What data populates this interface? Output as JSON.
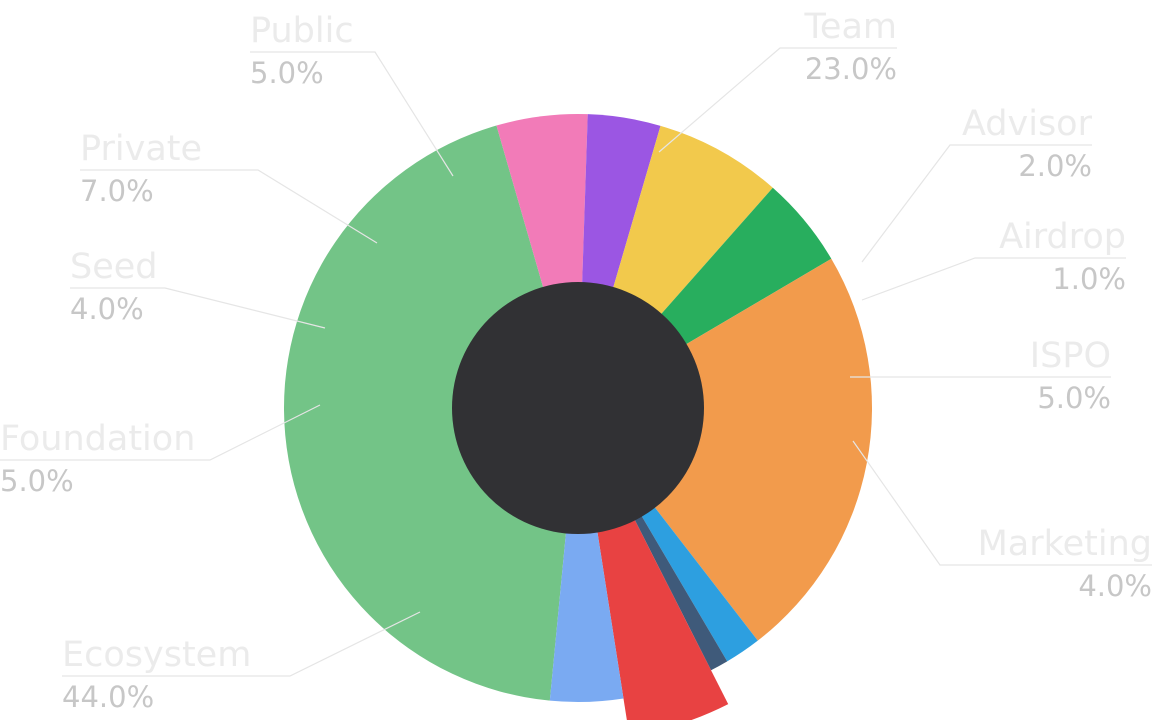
{
  "chart_data": {
    "type": "pie",
    "variant": "donut",
    "unit": "%",
    "highlighted_slice": "ISPO",
    "center_color": "#313134",
    "slices": [
      {
        "name": "Ecosystem",
        "value": 44.0,
        "label": "44.0%",
        "color": "#73c487"
      },
      {
        "name": "Foundation",
        "value": 5.0,
        "label": "5.0%",
        "color": "#f27bb8"
      },
      {
        "name": "Seed",
        "value": 4.0,
        "label": "4.0%",
        "color": "#9b56e3"
      },
      {
        "name": "Private",
        "value": 7.0,
        "label": "7.0%",
        "color": "#f2c94c"
      },
      {
        "name": "Public",
        "value": 5.0,
        "label": "5.0%",
        "color": "#28ae5e"
      },
      {
        "name": "Team",
        "value": 23.0,
        "label": "23.0%",
        "color": "#f29b4c"
      },
      {
        "name": "Advisor",
        "value": 2.0,
        "label": "2.0%",
        "color": "#2d9fe0"
      },
      {
        "name": "Airdrop",
        "value": 1.0,
        "label": "1.0%",
        "color": "#3f5a7a"
      },
      {
        "name": "ISPO",
        "value": 5.0,
        "label": "5.0%",
        "color": "#e84242"
      },
      {
        "name": "Marketing",
        "value": 4.0,
        "label": "4.0%",
        "color": "#7aaaf2"
      }
    ]
  }
}
